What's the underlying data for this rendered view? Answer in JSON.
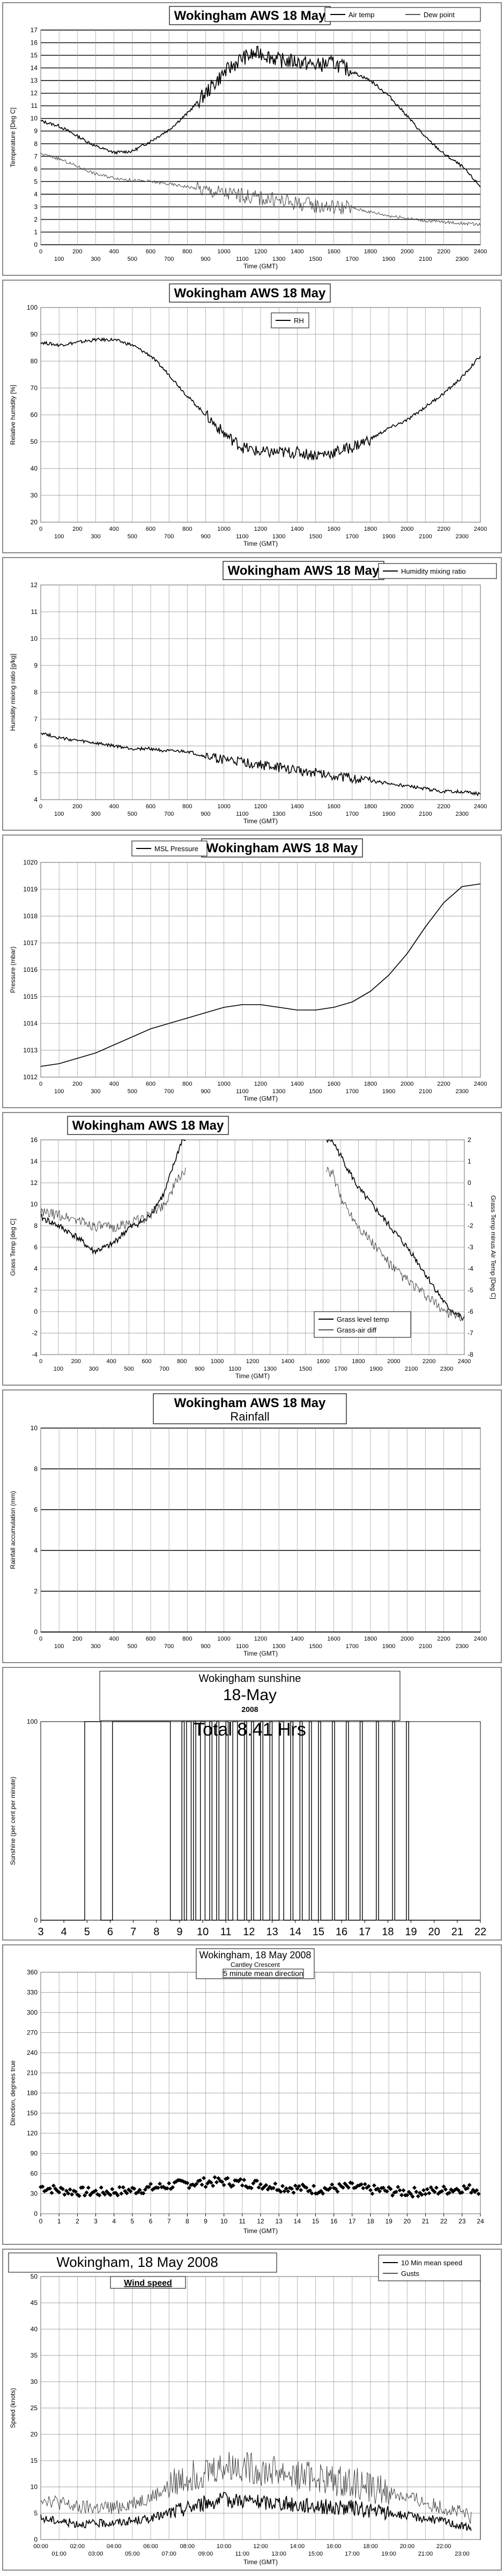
{
  "chart_data": [
    {
      "type": "line",
      "title": "Wokingham AWS 18 May",
      "ylabel": "Temperature [Deg C]",
      "xlabel": "Time (GMT)",
      "ylim": [
        0,
        17
      ],
      "yticks": [
        "0",
        "1",
        "2",
        "3",
        "4",
        "5",
        "6",
        "7",
        "8",
        "9",
        "10",
        "11",
        "12",
        "13",
        "14",
        "15",
        "16",
        "17"
      ],
      "xticks_upper": [
        "0",
        "200",
        "400",
        "600",
        "800",
        "1000",
        "1200",
        "1400",
        "1600",
        "1800",
        "2000",
        "2200",
        "2400"
      ],
      "xticks_lower": [
        "100",
        "300",
        "500",
        "700",
        "900",
        "1100",
        "1300",
        "1500",
        "1700",
        "1900",
        "2100",
        "2300"
      ],
      "legend": "top-right",
      "grid": true,
      "series": [
        {
          "name": "Air temp",
          "noisy": true,
          "x": [
            0,
            100,
            200,
            300,
            400,
            500,
            600,
            700,
            800,
            900,
            1000,
            1100,
            1200,
            1300,
            1400,
            1500,
            1600,
            1700,
            1800,
            1900,
            2000,
            2100,
            2200,
            2300,
            2400
          ],
          "values": [
            9.8,
            9.4,
            8.6,
            7.8,
            7.3,
            7.4,
            8.2,
            9.1,
            10.4,
            12.0,
            13.6,
            14.8,
            15.2,
            14.6,
            14.5,
            14.2,
            14.4,
            13.7,
            13.0,
            11.8,
            10.2,
            8.5,
            7.2,
            6.2,
            4.6
          ]
        },
        {
          "name": "Dew point",
          "noisy": true,
          "x": [
            0,
            100,
            200,
            300,
            400,
            500,
            600,
            700,
            800,
            900,
            1000,
            1100,
            1200,
            1300,
            1400,
            1500,
            1600,
            1700,
            1800,
            1900,
            2000,
            2100,
            2200,
            2300,
            2400
          ],
          "values": [
            7.2,
            6.8,
            6.2,
            5.6,
            5.3,
            5.1,
            5.0,
            4.8,
            4.6,
            4.3,
            4.1,
            3.9,
            3.7,
            3.5,
            3.3,
            3.1,
            3.0,
            2.9,
            2.6,
            2.3,
            2.1,
            1.9,
            1.8,
            1.7,
            1.6
          ]
        }
      ]
    },
    {
      "type": "line",
      "title": "Wokingham AWS 18 May",
      "ylabel": "Relative humidity [%]",
      "xlabel": "Time (GMT)",
      "ylim": [
        20,
        100
      ],
      "yticks": [
        "20",
        "30",
        "40",
        "50",
        "60",
        "70",
        "80",
        "90",
        "100"
      ],
      "xticks_upper": [
        "0",
        "200",
        "400",
        "600",
        "800",
        "1000",
        "1200",
        "1400",
        "1600",
        "1800",
        "2000",
        "2200",
        "2400"
      ],
      "xticks_lower": [
        "100",
        "300",
        "500",
        "700",
        "900",
        "1100",
        "1300",
        "1500",
        "1700",
        "1900",
        "2100",
        "2300"
      ],
      "legend": "top-center",
      "grid": true,
      "series": [
        {
          "name": "RH",
          "noisy": true,
          "x": [
            0,
            100,
            200,
            300,
            400,
            500,
            600,
            700,
            800,
            900,
            1000,
            1100,
            1200,
            1300,
            1400,
            1500,
            1600,
            1700,
            1800,
            1900,
            2000,
            2100,
            2200,
            2300,
            2400
          ],
          "values": [
            87,
            86,
            87,
            88,
            88,
            86,
            82,
            75,
            67,
            60,
            53,
            48,
            46,
            46,
            46,
            45,
            46,
            48,
            51,
            55,
            58,
            63,
            68,
            74,
            82
          ]
        }
      ]
    },
    {
      "type": "line",
      "title": "Wokingham AWS 18 May",
      "ylabel": "Humidity mixing ratio [g/kg]",
      "xlabel": "Time (GMT)",
      "ylim": [
        4,
        12
      ],
      "yticks": [
        "4",
        "5",
        "6",
        "7",
        "8",
        "9",
        "10",
        "11",
        "12"
      ],
      "xticks_upper": [
        "0",
        "200",
        "400",
        "600",
        "800",
        "1000",
        "1200",
        "1400",
        "1600",
        "1800",
        "2000",
        "2200",
        "2400"
      ],
      "xticks_lower": [
        "100",
        "300",
        "500",
        "700",
        "900",
        "1100",
        "1300",
        "1500",
        "1700",
        "1900",
        "2100",
        "2300"
      ],
      "legend": "top-right",
      "grid": true,
      "series": [
        {
          "name": "Humidity mixing ratio",
          "noisy": true,
          "x": [
            0,
            100,
            200,
            300,
            400,
            500,
            600,
            700,
            800,
            900,
            1000,
            1100,
            1200,
            1300,
            1400,
            1500,
            1600,
            1700,
            1800,
            1900,
            2000,
            2100,
            2200,
            2300,
            2400
          ],
          "values": [
            6.5,
            6.3,
            6.2,
            6.1,
            6.0,
            5.9,
            5.9,
            5.8,
            5.8,
            5.6,
            5.5,
            5.4,
            5.3,
            5.2,
            5.1,
            5.0,
            4.9,
            4.8,
            4.7,
            4.6,
            4.5,
            4.4,
            4.3,
            4.3,
            4.2
          ]
        }
      ]
    },
    {
      "type": "line",
      "title": "Wokingham AWS 18 May",
      "ylabel": "Pressure (mbar)",
      "xlabel": "Time (GMT)",
      "ylim": [
        1012,
        1020
      ],
      "yticks": [
        "1012",
        "1013",
        "1014",
        "1015",
        "1016",
        "1017",
        "1018",
        "1019",
        "1020"
      ],
      "xticks_upper": [
        "0",
        "200",
        "400",
        "600",
        "800",
        "1000",
        "1200",
        "1400",
        "1600",
        "1800",
        "2000",
        "2200",
        "2400"
      ],
      "xticks_lower": [
        "100",
        "300",
        "500",
        "700",
        "900",
        "1100",
        "1300",
        "1500",
        "1700",
        "1900",
        "2100",
        "2300"
      ],
      "legend": "top-left",
      "grid": true,
      "series": [
        {
          "name": "MSL Pressure",
          "noisy": false,
          "x": [
            0,
            100,
            200,
            300,
            400,
            500,
            600,
            700,
            800,
            900,
            1000,
            1100,
            1200,
            1300,
            1400,
            1500,
            1600,
            1700,
            1800,
            1900,
            2000,
            2100,
            2200,
            2300,
            2400
          ],
          "values": [
            1012.4,
            1012.5,
            1012.7,
            1012.9,
            1013.2,
            1013.5,
            1013.8,
            1014.0,
            1014.2,
            1014.4,
            1014.6,
            1014.7,
            1014.7,
            1014.6,
            1014.5,
            1014.5,
            1014.6,
            1014.8,
            1015.2,
            1015.8,
            1016.6,
            1017.6,
            1018.5,
            1019.1,
            1019.2
          ]
        }
      ]
    },
    {
      "type": "line",
      "title": "Wokingham AWS 18 May",
      "ylabel": "Grass Temp [deg C]",
      "ylabel_right": "Grass Temp minus Air Temp [Deg C]",
      "xlabel": "Time (GMT)",
      "ylim": [
        -4,
        16
      ],
      "ylim_right": [
        -8,
        2
      ],
      "yticks": [
        "-4",
        "-2",
        "0",
        "2",
        "4",
        "6",
        "8",
        "10",
        "12",
        "14",
        "16"
      ],
      "yticks_right": [
        "-8",
        "-7",
        "-6",
        "-5",
        "-4",
        "-3",
        "-2",
        "-1",
        "0",
        "1",
        "2"
      ],
      "xticks_upper": [
        "0",
        "200",
        "400",
        "600",
        "800",
        "1000",
        "1200",
        "1400",
        "1600",
        "1800",
        "2000",
        "2200",
        "2400"
      ],
      "xticks_lower": [
        "100",
        "300",
        "500",
        "700",
        "900",
        "1100",
        "1300",
        "1500",
        "1700",
        "1900",
        "2100",
        "2300"
      ],
      "legend": "bottom-right",
      "grid": true,
      "series": [
        {
          "name": "Grass level temp",
          "noisy": true,
          "x": [
            0,
            100,
            200,
            300,
            400,
            500,
            600,
            700,
            800,
            1650,
            1700,
            1800,
            1900,
            2000,
            2100,
            2200,
            2300,
            2400
          ],
          "values": [
            8.8,
            8.0,
            7.0,
            5.6,
            6.2,
            7.8,
            8.6,
            11.0,
            16.0,
            16.0,
            14.5,
            11.5,
            9.5,
            7.5,
            5.5,
            3.0,
            0.5,
            -0.8
          ]
        },
        {
          "name": "Grass-air diff",
          "noisy": true,
          "axis": "right",
          "x": [
            0,
            100,
            200,
            300,
            400,
            500,
            600,
            700,
            800,
            1650,
            1700,
            1800,
            1900,
            2000,
            2100,
            2200,
            2300,
            2400
          ],
          "values": [
            -1.4,
            -1.5,
            -1.7,
            -2.0,
            -2.1,
            -1.9,
            -1.6,
            -1.0,
            0.5,
            0.5,
            -0.7,
            -2.0,
            -3.0,
            -4.0,
            -4.7,
            -5.4,
            -6.0,
            -6.4
          ]
        }
      ]
    },
    {
      "type": "line",
      "title": "Wokingham AWS 18 May",
      "subtitle": "Rainfall",
      "ylabel": "Rainfall accumulation (mm)",
      "xlabel": "Time (GMT)",
      "ylim": [
        0,
        10
      ],
      "yticks": [
        "0",
        "2",
        "4",
        "6",
        "8",
        "10"
      ],
      "xticks_upper": [
        "0",
        "200",
        "400",
        "600",
        "800",
        "1000",
        "1200",
        "1400",
        "1600",
        "1800",
        "2000",
        "2200",
        "2400"
      ],
      "xticks_lower": [
        "100",
        "300",
        "500",
        "700",
        "900",
        "1100",
        "1300",
        "1500",
        "1700",
        "1900",
        "2100",
        "2300"
      ],
      "grid": true,
      "series": [
        {
          "name": "",
          "noisy": false,
          "x": [
            0,
            2400
          ],
          "values": [
            0,
            0
          ]
        }
      ]
    },
    {
      "type": "line",
      "title": "Wokingham sunshine",
      "subtitle": "18-May",
      "year": "2008",
      "total": "Total 8.41 Hrs",
      "ylabel": "Sunshine (per cent per minute)",
      "xlabel": "",
      "ylim": [
        0,
        100
      ],
      "yticks": [
        "0",
        "100"
      ],
      "xticks": [
        "3",
        "4",
        "5",
        "6",
        "7",
        "8",
        "9",
        "10",
        "11",
        "12",
        "13",
        "14",
        "15",
        "16",
        "17",
        "18",
        "19",
        "20",
        "21",
        "22"
      ],
      "grid": false,
      "series": [
        {
          "name": "",
          "segments": [
            [
              4.9,
              5.6
            ],
            [
              6.1,
              8.6
            ],
            [
              9.1,
              9.2
            ],
            [
              9.3,
              9.5
            ],
            [
              9.6,
              9.7
            ],
            [
              9.9,
              10.1
            ],
            [
              10.3,
              10.4
            ],
            [
              10.6,
              10.7
            ],
            [
              11.0,
              11.1
            ],
            [
              11.3,
              11.5
            ],
            [
              11.8,
              11.9
            ],
            [
              12.1,
              12.2
            ],
            [
              12.5,
              12.6
            ],
            [
              12.9,
              13.0
            ],
            [
              13.3,
              13.5
            ],
            [
              13.8,
              13.9
            ],
            [
              14.2,
              14.3
            ],
            [
              14.6,
              14.7
            ],
            [
              15.0,
              15.1
            ],
            [
              15.6,
              15.7
            ],
            [
              16.2,
              16.3
            ],
            [
              16.8,
              16.9
            ],
            [
              17.5,
              17.6
            ],
            [
              18.2,
              18.3
            ],
            [
              18.8,
              18.9
            ]
          ]
        }
      ]
    },
    {
      "type": "scatter",
      "title": "Wokingham,  18 May 2008",
      "subtitle": "Cantley Crescent",
      "annotation": "5 minute mean direction",
      "ylabel": "Direction, degrees true",
      "xlabel": "Time (GMT)",
      "ylim": [
        0,
        360
      ],
      "yticks": [
        "0",
        "30",
        "60",
        "90",
        "120",
        "150",
        "180",
        "210",
        "240",
        "270",
        "300",
        "330",
        "360"
      ],
      "xticks": [
        "0",
        "1",
        "2",
        "3",
        "4",
        "5",
        "6",
        "7",
        "8",
        "9",
        "10",
        "11",
        "12",
        "13",
        "14",
        "15",
        "16",
        "17",
        "18",
        "19",
        "20",
        "21",
        "22",
        "23",
        "24"
      ],
      "grid": true,
      "series": [
        {
          "name": "5 minute mean direction",
          "x": [
            0,
            1,
            2,
            3,
            4,
            5,
            6,
            7,
            8,
            9,
            10,
            11,
            12,
            13,
            14,
            15,
            16,
            17,
            18,
            19,
            20,
            21,
            22,
            23,
            24
          ],
          "values": [
            40,
            35,
            33,
            32,
            33,
            35,
            38,
            42,
            45,
            47,
            48,
            46,
            44,
            40,
            38,
            36,
            38,
            40,
            36,
            34,
            32,
            33,
            35,
            38,
            36
          ]
        }
      ]
    },
    {
      "type": "line",
      "title": "Wokingham,  18 May 2008",
      "subtitle": "Wind speed",
      "ylabel": "Speed (knots)",
      "xlabel": "Time (GMT)",
      "ylim": [
        0,
        50
      ],
      "yticks": [
        "0",
        "5",
        "10",
        "15",
        "20",
        "25",
        "30",
        "35",
        "40",
        "45",
        "50"
      ],
      "xticks_upper": [
        "00:00",
        "02:00",
        "04:00",
        "06:00",
        "08:00",
        "10:00",
        "12:00",
        "14:00",
        "16:00",
        "18:00",
        "20:00",
        "22:00"
      ],
      "xticks_lower": [
        "01:00",
        "03:00",
        "05:00",
        "07:00",
        "09:00",
        "11:00",
        "13:00",
        "15:00",
        "17:00",
        "19:00",
        "21:00",
        "23:00"
      ],
      "legend": "top-right",
      "grid": true,
      "series": [
        {
          "name": "10 Min mean speed",
          "noisy": true,
          "x": [
            0,
            1,
            2,
            3,
            4,
            5,
            6,
            7,
            8,
            9,
            10,
            11,
            12,
            13,
            14,
            15,
            16,
            17,
            18,
            19,
            20,
            21,
            22,
            23,
            23.5
          ],
          "values": [
            4,
            3.5,
            3,
            3,
            3.2,
            3.5,
            4,
            5,
            6,
            7,
            7.5,
            7.5,
            7,
            7,
            6.5,
            6.5,
            6,
            6,
            5.5,
            5,
            4.5,
            4,
            3.5,
            2.5,
            2
          ]
        },
        {
          "name": "Gusts",
          "noisy": true,
          "x": [
            0,
            1,
            2,
            3,
            4,
            5,
            6,
            7,
            8,
            9,
            10,
            11,
            12,
            13,
            14,
            15,
            16,
            17,
            18,
            19,
            20,
            21,
            22,
            23,
            23.5
          ],
          "values": [
            8,
            7,
            6,
            6,
            6,
            7,
            8,
            10,
            12,
            13,
            14,
            14,
            13,
            13,
            12,
            12,
            11,
            11,
            10,
            9,
            8,
            7,
            6,
            5,
            4
          ]
        }
      ]
    }
  ]
}
